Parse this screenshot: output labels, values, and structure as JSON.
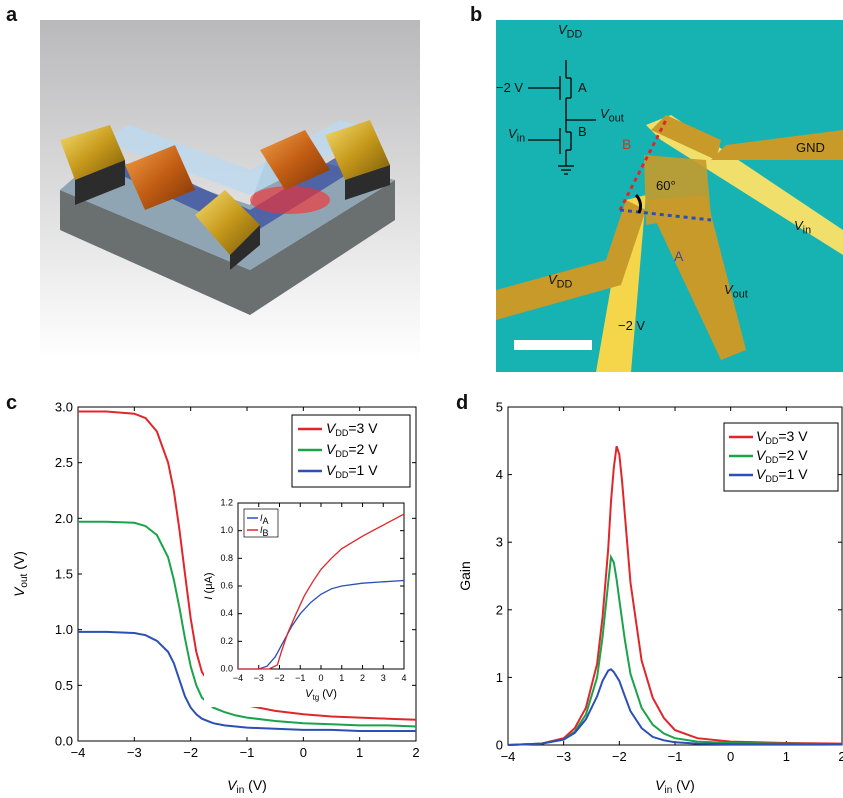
{
  "labels": {
    "a": "a",
    "b": "b",
    "c": "c",
    "d": "d"
  },
  "panel_b": {
    "vdd_top": "V",
    "vdd_top_sub": "DD",
    "neg2_in": "−2 V",
    "A": "A",
    "B": "B",
    "vout": "V",
    "vout_sub": "out",
    "vin": "V",
    "vin_sub": "in",
    "gnd": "GND",
    "angle": "60°",
    "region_B": "B",
    "region_A": "A",
    "vin_wire": "V",
    "vin_wire_sub": "in",
    "vdd_pad": "V",
    "vdd_pad_sub": "DD",
    "vout_pad": "V",
    "vout_pad_sub": "out",
    "neg2_pad": "−2 V"
  },
  "chart_data": [
    {
      "id": "c",
      "type": "line",
      "xlabel": "V",
      "xlabel_sub": "in",
      "xlabel_unit": " (V)",
      "ylabel": "V",
      "ylabel_sub": "out",
      "ylabel_unit": " (V)",
      "xlim": [
        -4,
        2
      ],
      "ylim": [
        0,
        3
      ],
      "xticks": [
        -4,
        -3,
        -2,
        -1,
        0,
        1,
        2
      ],
      "xtick_labels": [
        "−4",
        "−3",
        "−2",
        "−1",
        "0",
        "1",
        "2"
      ],
      "yticks": [
        0,
        0.5,
        1,
        1.5,
        2,
        2.5,
        3
      ],
      "ytick_labels": [
        "0.0",
        "0.5",
        "1.0",
        "1.5",
        "2.0",
        "2.5",
        "3.0"
      ],
      "legend_position": "top-right",
      "series": [
        {
          "name_main": "V",
          "name_sub": "DD",
          "name_tail": "=3 V",
          "color": "#e0262a",
          "x": [
            -4,
            -3.5,
            -3,
            -2.8,
            -2.6,
            -2.4,
            -2.3,
            -2.2,
            -2.1,
            -2.0,
            -1.9,
            -1.8,
            -1.6,
            -1.4,
            -1.2,
            -1,
            -0.5,
            0,
            0.5,
            1,
            1.5,
            2
          ],
          "y": [
            2.96,
            2.96,
            2.94,
            2.9,
            2.78,
            2.5,
            2.25,
            1.9,
            1.5,
            1.1,
            0.8,
            0.62,
            0.47,
            0.4,
            0.35,
            0.32,
            0.27,
            0.24,
            0.22,
            0.21,
            0.2,
            0.19
          ]
        },
        {
          "name_main": "V",
          "name_sub": "DD",
          "name_tail": "=2 V",
          "color": "#1aa34a",
          "x": [
            -4,
            -3.5,
            -3,
            -2.8,
            -2.6,
            -2.4,
            -2.3,
            -2.2,
            -2.1,
            -2.0,
            -1.9,
            -1.8,
            -1.6,
            -1.4,
            -1.2,
            -1,
            -0.5,
            0,
            0.5,
            1,
            1.5,
            2
          ],
          "y": [
            1.97,
            1.97,
            1.96,
            1.93,
            1.85,
            1.65,
            1.45,
            1.2,
            0.92,
            0.67,
            0.5,
            0.39,
            0.3,
            0.26,
            0.23,
            0.21,
            0.18,
            0.16,
            0.15,
            0.14,
            0.14,
            0.13
          ]
        },
        {
          "name_main": "V",
          "name_sub": "DD",
          "name_tail": "=1 V",
          "color": "#2b4fb5",
          "x": [
            -4,
            -3.5,
            -3,
            -2.8,
            -2.6,
            -2.4,
            -2.3,
            -2.2,
            -2.1,
            -2.0,
            -1.9,
            -1.8,
            -1.6,
            -1.4,
            -1.2,
            -1,
            -0.5,
            0,
            0.5,
            1,
            1.5,
            2
          ],
          "y": [
            0.98,
            0.98,
            0.97,
            0.95,
            0.9,
            0.8,
            0.7,
            0.55,
            0.4,
            0.3,
            0.24,
            0.2,
            0.16,
            0.14,
            0.13,
            0.12,
            0.11,
            0.1,
            0.1,
            0.09,
            0.09,
            0.09
          ]
        }
      ],
      "inset": {
        "type": "line",
        "xlabel": "V",
        "xlabel_sub": "tg",
        "xlabel_unit": " (V)",
        "ylabel": "I",
        "ylabel_unit": " (μA)",
        "xlim": [
          -4,
          4
        ],
        "ylim": [
          0,
          1.2
        ],
        "xticks": [
          -4,
          -3,
          -2,
          -1,
          0,
          1,
          2,
          3,
          4
        ],
        "xtick_labels": [
          "−4",
          "−3",
          "−2",
          "−1",
          "0",
          "1",
          "2",
          "3",
          "4"
        ],
        "yticks": [
          0,
          0.2,
          0.4,
          0.6,
          0.8,
          1.0,
          1.2
        ],
        "ytick_labels": [
          "0.0",
          "0.2",
          "0.4",
          "0.6",
          "0.8",
          "1.0",
          "1.2"
        ],
        "legend_position": "top-left",
        "series": [
          {
            "name_main": "I",
            "name_sub": "A",
            "color": "#2b4fb5",
            "x": [
              -4,
              -3,
              -2.6,
              -2.2,
              -1.8,
              -1.4,
              -1,
              -0.5,
              0,
              0.5,
              1,
              2,
              3,
              4
            ],
            "y": [
              0,
              0,
              0.02,
              0.09,
              0.2,
              0.31,
              0.4,
              0.48,
              0.54,
              0.58,
              0.6,
              0.62,
              0.63,
              0.64
            ]
          },
          {
            "name_main": "I",
            "name_sub": "B",
            "color": "#e0262a",
            "x": [
              -4,
              -2.5,
              -2.1,
              -1.9,
              -1.6,
              -1.2,
              -0.8,
              -0.4,
              0,
              0.5,
              1,
              2,
              3,
              4
            ],
            "y": [
              0,
              0,
              0.03,
              0.13,
              0.26,
              0.4,
              0.53,
              0.63,
              0.72,
              0.8,
              0.87,
              0.96,
              1.04,
              1.12
            ]
          }
        ]
      }
    },
    {
      "id": "d",
      "type": "line",
      "xlabel": "V",
      "xlabel_sub": "in",
      "xlabel_unit": " (V)",
      "ylabel": "Gain",
      "xlim": [
        -4,
        2
      ],
      "ylim": [
        0,
        5
      ],
      "xticks": [
        -4,
        -3,
        -2,
        -1,
        0,
        1,
        2
      ],
      "xtick_labels": [
        "−4",
        "−3",
        "−2",
        "−1",
        "0",
        "1",
        "2"
      ],
      "yticks": [
        0,
        1,
        2,
        3,
        4,
        5
      ],
      "ytick_labels": [
        "0",
        "1",
        "2",
        "3",
        "4",
        "5"
      ],
      "legend_position": "top-right",
      "series": [
        {
          "name_main": "V",
          "name_sub": "DD",
          "name_tail": "=3 V",
          "color": "#e0262a",
          "x": [
            -4,
            -3.4,
            -3,
            -2.8,
            -2.6,
            -2.4,
            -2.3,
            -2.2,
            -2.15,
            -2.1,
            -2.05,
            -2.0,
            -1.95,
            -1.9,
            -1.8,
            -1.6,
            -1.4,
            -1.2,
            -1,
            -0.6,
            0,
            1,
            2
          ],
          "y": [
            0,
            0.02,
            0.1,
            0.25,
            0.55,
            1.2,
            1.9,
            2.9,
            3.6,
            4.1,
            4.42,
            4.3,
            3.9,
            3.4,
            2.4,
            1.25,
            0.7,
            0.4,
            0.22,
            0.1,
            0.05,
            0.03,
            0.02
          ]
        },
        {
          "name_main": "V",
          "name_sub": "DD",
          "name_tail": "=2 V",
          "color": "#1aa34a",
          "x": [
            -4,
            -3.4,
            -3,
            -2.8,
            -2.6,
            -2.4,
            -2.3,
            -2.2,
            -2.15,
            -2.1,
            -2.05,
            -2.0,
            -1.9,
            -1.8,
            -1.6,
            -1.4,
            -1.2,
            -1,
            -0.6,
            0,
            1,
            2
          ],
          "y": [
            0,
            0.02,
            0.08,
            0.2,
            0.45,
            1.0,
            1.6,
            2.4,
            2.78,
            2.7,
            2.45,
            2.15,
            1.55,
            1.05,
            0.55,
            0.3,
            0.17,
            0.1,
            0.05,
            0.03,
            0.02,
            0.01
          ]
        },
        {
          "name_main": "V",
          "name_sub": "DD",
          "name_tail": "=1 V",
          "color": "#2b4fb5",
          "x": [
            -4,
            -3.4,
            -3,
            -2.8,
            -2.6,
            -2.4,
            -2.3,
            -2.2,
            -2.15,
            -2.1,
            -2.0,
            -1.9,
            -1.8,
            -1.6,
            -1.4,
            -1.2,
            -1,
            -0.6,
            0,
            1,
            2
          ],
          "y": [
            0,
            0.02,
            0.08,
            0.18,
            0.38,
            0.72,
            0.95,
            1.1,
            1.12,
            1.08,
            0.95,
            0.72,
            0.5,
            0.25,
            0.12,
            0.07,
            0.04,
            0.02,
            0.01,
            0.01,
            0.01
          ]
        }
      ]
    }
  ]
}
